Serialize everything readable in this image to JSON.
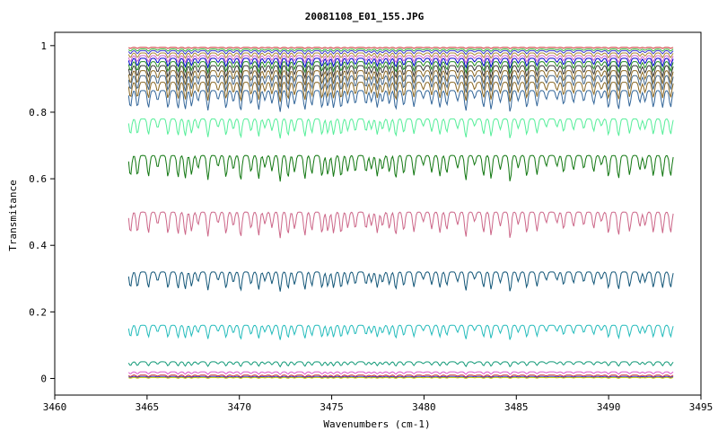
{
  "chart_data": {
    "type": "line",
    "title": "20081108_E01_155.JPG",
    "xlabel": "Wavenumbers (cm-1)",
    "ylabel": "Transmitance",
    "xlim": [
      3460,
      3495
    ],
    "ylim": [
      -0.05,
      1.04
    ],
    "xticks": [
      3460,
      3465,
      3470,
      3475,
      3480,
      3485,
      3490,
      3495
    ],
    "yticks": [
      0,
      0.2,
      0.4,
      0.6,
      0.8,
      1
    ],
    "ytick_labels": [
      "0",
      "0.2",
      "0.4",
      "0.6",
      "0.8",
      "1"
    ],
    "grid": false,
    "legend": "none",
    "x_range": [
      3464,
      3493.5
    ],
    "series": [
      {
        "baseline": 0.995,
        "depth": 0.004,
        "color": "#cc3333"
      },
      {
        "baseline": 0.99,
        "depth": 0.008,
        "color": "#33aa33"
      },
      {
        "baseline": 0.985,
        "depth": 0.012,
        "color": "#3333cc"
      },
      {
        "baseline": 0.978,
        "depth": 0.018,
        "color": "#aa8833"
      },
      {
        "baseline": 0.97,
        "depth": 0.024,
        "color": "#cc66cc"
      },
      {
        "baseline": 0.962,
        "depth": 0.03,
        "color": "#0000cc"
      },
      {
        "baseline": 0.952,
        "depth": 0.036,
        "color": "#228822"
      },
      {
        "baseline": 0.94,
        "depth": 0.042,
        "color": "#333333"
      },
      {
        "baseline": 0.925,
        "depth": 0.05,
        "color": "#886622"
      },
      {
        "baseline": 0.91,
        "depth": 0.055,
        "color": "#446688"
      },
      {
        "baseline": 0.89,
        "depth": 0.06,
        "color": "#886622"
      },
      {
        "baseline": 0.865,
        "depth": 0.065,
        "color": "#336699"
      },
      {
        "baseline": 0.78,
        "depth": 0.06,
        "color": "#55ee99"
      },
      {
        "baseline": 0.67,
        "depth": 0.08,
        "color": "#117711"
      },
      {
        "baseline": 0.5,
        "depth": 0.08,
        "color": "#cc6688"
      },
      {
        "baseline": 0.32,
        "depth": 0.06,
        "color": "#115577"
      },
      {
        "baseline": 0.16,
        "depth": 0.045,
        "color": "#22bbbb"
      },
      {
        "baseline": 0.05,
        "depth": 0.015,
        "color": "#119977"
      },
      {
        "baseline": 0.02,
        "depth": 0.008,
        "color": "#dd55cc"
      },
      {
        "baseline": 0.01,
        "depth": 0.006,
        "color": "#cc3333"
      },
      {
        "baseline": 0.006,
        "depth": 0.004,
        "color": "#3333cc"
      },
      {
        "baseline": 0.003,
        "depth": 0.003,
        "color": "#cccc00"
      }
    ]
  }
}
